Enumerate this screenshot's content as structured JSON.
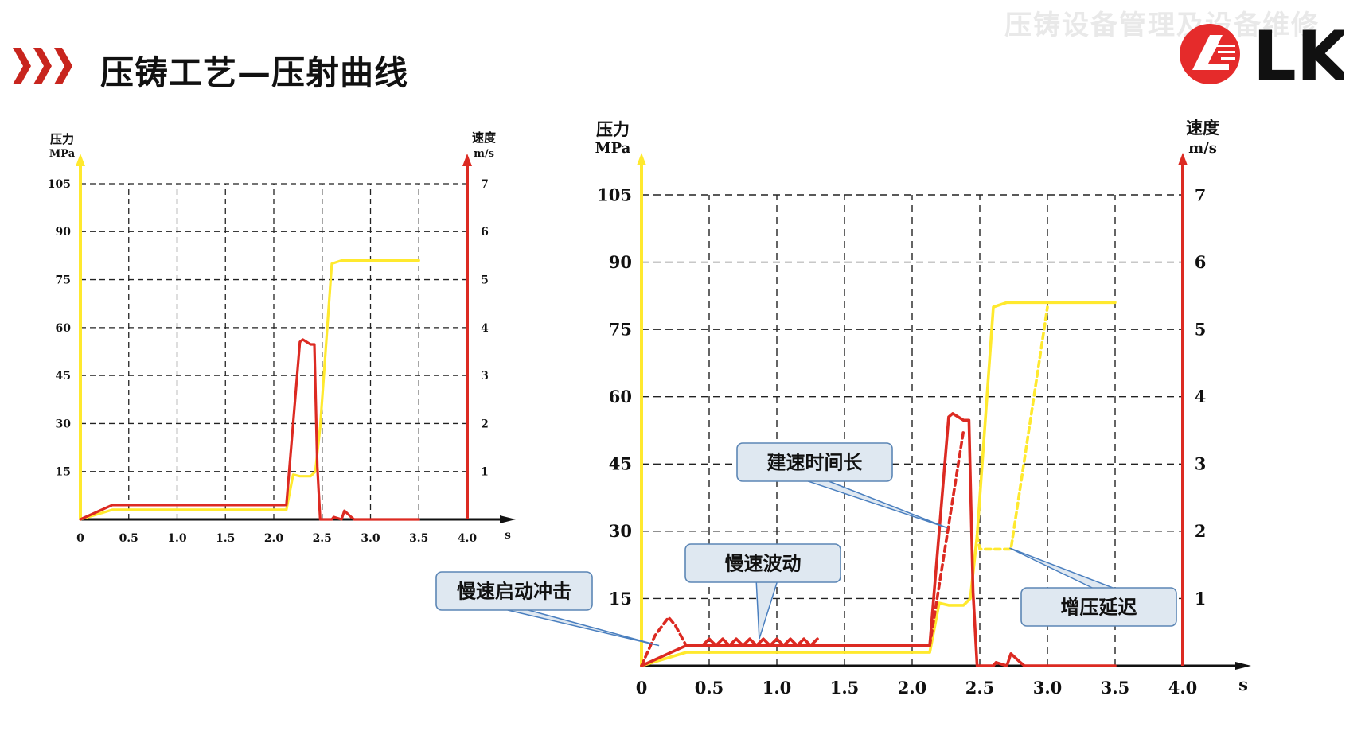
{
  "page": {
    "title": "压铸工艺—压射曲线",
    "watermark": "压铸设备管理及设备维修",
    "logo_text": "LK"
  },
  "colors": {
    "pressure": "#ffe92e",
    "speed": "#dc2a22",
    "accent": "#c8251e",
    "grid": "#222222",
    "callout_fill": "#dfe8f1",
    "callout_border": "#5c86b5",
    "callout_leader": "#4a7fbf"
  },
  "chart_data": [
    {
      "type": "line",
      "title": "",
      "x_unit": "s",
      "xlim": [
        0,
        4.0
      ],
      "x_ticks": [
        0,
        0.5,
        1.0,
        1.5,
        2.0,
        2.5,
        3.0,
        3.5,
        4.0
      ],
      "x_tick_labels": [
        "0",
        "0.5",
        "1.0",
        "1.5",
        "2.0",
        "2.5",
        "3.0",
        "3.5",
        "4.0"
      ],
      "y_left": {
        "label": "压力",
        "unit": "MPa",
        "ylim": [
          0,
          105
        ],
        "ticks": [
          15,
          30,
          45,
          60,
          75,
          90,
          105
        ]
      },
      "y_right": {
        "label": "速度",
        "unit": "m/s",
        "ylim": [
          0,
          7
        ],
        "ticks": [
          1,
          2,
          3,
          4,
          5,
          6,
          7
        ]
      },
      "grid": true,
      "series": [
        {
          "axis": "left",
          "color": "#ffe92e",
          "style": "solid",
          "x": [
            0,
            0.33,
            2.13,
            2.2,
            2.27,
            2.38,
            2.43,
            2.48,
            2.6,
            2.7,
            3.5
          ],
          "y": [
            0,
            3,
            3,
            14,
            13.5,
            13.5,
            15,
            29,
            80,
            81,
            81
          ]
        },
        {
          "axis": "right",
          "color": "#dc2a22",
          "style": "solid",
          "x": [
            0,
            0.33,
            2.13,
            2.27,
            2.3,
            2.38,
            2.42,
            2.45,
            2.48,
            2.5,
            2.6,
            2.62,
            2.7,
            2.73,
            2.8,
            2.83,
            3.5
          ],
          "y": [
            0,
            0.3,
            0.3,
            3.7,
            3.75,
            3.65,
            3.65,
            1.1,
            0.0,
            0.0,
            0.0,
            0.05,
            0.0,
            0.18,
            0.05,
            0.0,
            0.0
          ]
        }
      ]
    },
    {
      "type": "line",
      "title": "",
      "x_unit": "s",
      "xlim": [
        0,
        4.0
      ],
      "x_ticks": [
        0,
        0.5,
        1.0,
        1.5,
        2.0,
        2.5,
        3.0,
        3.5,
        4.0
      ],
      "x_tick_labels": [
        "0",
        "0.5",
        "1.0",
        "1.5",
        "2.0",
        "2.5",
        "3.0",
        "3.5",
        "4.0"
      ],
      "y_left": {
        "label": "压力",
        "unit": "MPa",
        "ylim": [
          0,
          105
        ],
        "ticks": [
          15,
          30,
          45,
          60,
          75,
          90,
          105
        ]
      },
      "y_right": {
        "label": "速度",
        "unit": "m/s",
        "ylim": [
          0,
          7
        ],
        "ticks": [
          1,
          2,
          3,
          4,
          5,
          6,
          7
        ]
      },
      "grid": true,
      "series": [
        {
          "axis": "left",
          "color": "#ffe92e",
          "style": "solid",
          "x": [
            0,
            0.33,
            2.13,
            2.2,
            2.27,
            2.38,
            2.43,
            2.48,
            2.6,
            2.7,
            3.5
          ],
          "y": [
            0,
            3,
            3,
            14,
            13.5,
            13.5,
            15,
            29,
            80,
            81,
            81
          ]
        },
        {
          "axis": "right",
          "color": "#dc2a22",
          "style": "solid",
          "x": [
            0,
            0.33,
            2.13,
            2.27,
            2.3,
            2.38,
            2.42,
            2.45,
            2.48,
            2.5,
            2.6,
            2.62,
            2.7,
            2.73,
            2.8,
            2.83,
            3.5
          ],
          "y": [
            0,
            0.3,
            0.3,
            3.7,
            3.75,
            3.65,
            3.65,
            1.1,
            0.0,
            0.0,
            0.0,
            0.05,
            0.0,
            0.18,
            0.05,
            0.0,
            0.0
          ]
        },
        {
          "axis": "right",
          "color": "#dc2a22",
          "style": "solid",
          "x": [
            0.45,
            0.5,
            0.55,
            0.6,
            0.65,
            0.7,
            0.75,
            0.8,
            0.85,
            0.9,
            0.95,
            1.0,
            1.05,
            1.1,
            1.15,
            1.2,
            1.25,
            1.3
          ],
          "y": [
            0.3,
            0.4,
            0.3,
            0.4,
            0.3,
            0.4,
            0.3,
            0.4,
            0.3,
            0.4,
            0.3,
            0.4,
            0.3,
            0.4,
            0.3,
            0.4,
            0.3,
            0.4
          ]
        },
        {
          "axis": "right",
          "color": "#dc2a22",
          "style": "dashed",
          "x": [
            0,
            0.1,
            0.2,
            0.25,
            0.33
          ],
          "y": [
            0,
            0.45,
            0.72,
            0.6,
            0.3
          ]
        },
        {
          "axis": "right",
          "color": "#dc2a22",
          "style": "dashed",
          "x": [
            2.13,
            2.38
          ],
          "y": [
            0.3,
            3.5
          ]
        },
        {
          "axis": "left",
          "color": "#ffe92e",
          "style": "dashed",
          "x": [
            2.48,
            2.5,
            2.63,
            2.73,
            3.0
          ],
          "y": [
            29,
            26,
            26,
            26,
            80
          ]
        }
      ],
      "annotations": [
        {
          "text": "慢速启动冲击",
          "target_x": 0.13,
          "target_y_right": 0.3
        },
        {
          "text": "慢速波动",
          "target_x": 0.87,
          "target_y_right": 0.4
        },
        {
          "text": "建速时间长",
          "target_x": 2.26,
          "target_y_right": 2.05
        },
        {
          "text": "增压延迟",
          "target_x": 2.72,
          "target_y_right": 1.75
        }
      ]
    }
  ]
}
